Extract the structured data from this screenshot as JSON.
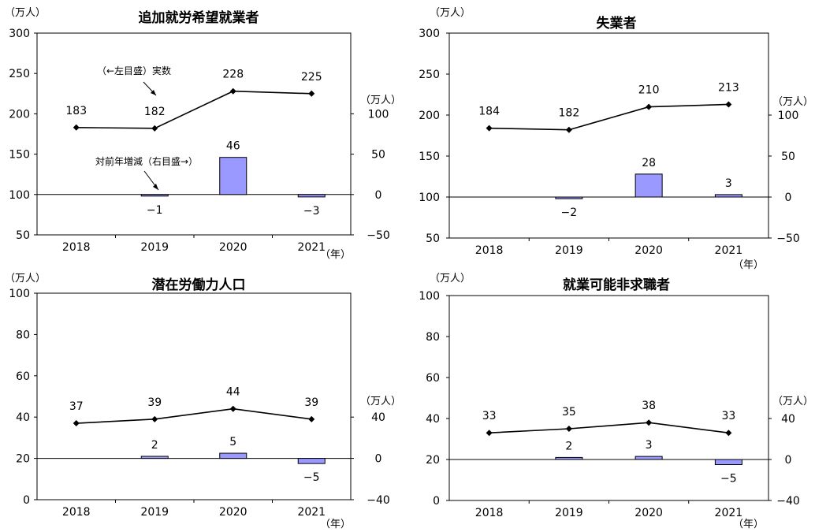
{
  "chart_data": [
    {
      "type": "bar+line",
      "title": "追加就労希望就業者",
      "left_unit": "（万人）",
      "right_unit": "（万人）",
      "year_unit": "（年）",
      "categories": [
        "2018",
        "2019",
        "2020",
        "2021"
      ],
      "series": [
        {
          "axis": "left",
          "type": "line",
          "values": [
            183,
            182,
            228,
            225
          ],
          "labels": [
            "183",
            "182",
            "228",
            "225"
          ]
        },
        {
          "axis": "right",
          "type": "bar",
          "values": [
            null,
            -1,
            46,
            -3
          ],
          "labels": [
            "",
            "−1",
            "46",
            "−3"
          ]
        }
      ],
      "left_ylim": [
        50,
        300
      ],
      "left_ticks": [
        "50",
        "100",
        "150",
        "200",
        "250",
        "300"
      ],
      "right_ylim": [
        -50,
        200
      ],
      "right_ticks": [
        "−50",
        "0",
        "50",
        "100"
      ],
      "annotations": [
        "（←左目盛）実数",
        "対前年増減（右目盛→）"
      ]
    },
    {
      "type": "bar+line",
      "title": "失業者",
      "left_unit": "（万人）",
      "right_unit": "（万人）",
      "year_unit": "（年）",
      "categories": [
        "2018",
        "2019",
        "2020",
        "2021"
      ],
      "series": [
        {
          "axis": "left",
          "type": "line",
          "values": [
            184,
            182,
            210,
            213
          ],
          "labels": [
            "184",
            "182",
            "210",
            "213"
          ]
        },
        {
          "axis": "right",
          "type": "bar",
          "values": [
            null,
            -2,
            28,
            3
          ],
          "labels": [
            "",
            "−2",
            "28",
            "3"
          ]
        }
      ],
      "left_ylim": [
        50,
        300
      ],
      "left_ticks": [
        "50",
        "100",
        "150",
        "200",
        "250",
        "300"
      ],
      "right_ylim": [
        -50,
        200
      ],
      "right_ticks": [
        "−50",
        "0",
        "50",
        "100"
      ],
      "annotations": []
    },
    {
      "type": "bar+line",
      "title": "潜在労働力人口",
      "left_unit": "（万人）",
      "right_unit": "（万人）",
      "year_unit": "（年）",
      "categories": [
        "2018",
        "2019",
        "2020",
        "2021"
      ],
      "series": [
        {
          "axis": "left",
          "type": "line",
          "values": [
            37,
            39,
            44,
            39
          ],
          "labels": [
            "37",
            "39",
            "44",
            "39"
          ]
        },
        {
          "axis": "right",
          "type": "bar",
          "values": [
            null,
            2,
            5,
            -5
          ],
          "labels": [
            "",
            "2",
            "5",
            "−5"
          ]
        }
      ],
      "left_ylim": [
        0,
        100
      ],
      "left_ticks": [
        "0",
        "20",
        "40",
        "60",
        "80",
        "100"
      ],
      "right_ylim": [
        -40,
        160
      ],
      "right_ticks": [
        "−40",
        "0",
        "40"
      ],
      "annotations": []
    },
    {
      "type": "bar+line",
      "title": "就業可能非求職者",
      "left_unit": "（万人）",
      "right_unit": "（万人）",
      "year_unit": "（年）",
      "categories": [
        "2018",
        "2019",
        "2020",
        "2021"
      ],
      "series": [
        {
          "axis": "left",
          "type": "line",
          "values": [
            33,
            35,
            38,
            33
          ],
          "labels": [
            "33",
            "35",
            "38",
            "33"
          ]
        },
        {
          "axis": "right",
          "type": "bar",
          "values": [
            null,
            2,
            3,
            -5
          ],
          "labels": [
            "",
            "2",
            "3",
            "−5"
          ]
        }
      ],
      "left_ylim": [
        0,
        100
      ],
      "left_ticks": [
        "0",
        "20",
        "40",
        "60",
        "80",
        "100"
      ],
      "right_ylim": [
        -40,
        160
      ],
      "right_ticks": [
        "−40",
        "0",
        "40"
      ],
      "annotations": []
    }
  ],
  "colors": {
    "bar_fill": "#9999ff",
    "bar_stroke": "#000000",
    "line": "#000000"
  }
}
